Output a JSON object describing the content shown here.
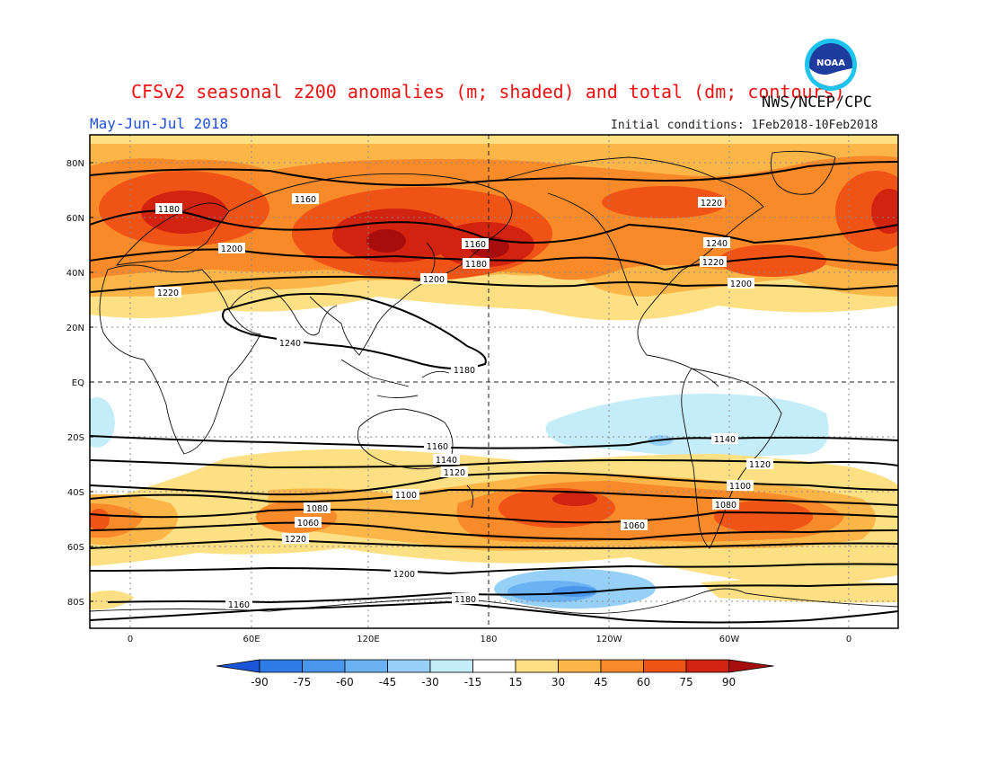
{
  "header": {
    "title": "CFSv2 seasonal z200 anomalies (m; shaded) and total (dm; contours)",
    "organization": "NWS/NCEP/CPC",
    "period": "May-Jun-Jul 2018",
    "initial_conditions": "Initial conditions: 1Feb2018-10Feb2018",
    "logo_text": "NOAA"
  },
  "axes": {
    "lat_labels": [
      "80N",
      "60N",
      "40N",
      "20N",
      "EQ",
      "20S",
      "40S",
      "60S",
      "80S"
    ],
    "lon_labels": [
      "0",
      "60E",
      "120E",
      "180",
      "120W",
      "60W",
      "0"
    ]
  },
  "contour_labels": [
    "1160",
    "1180",
    "1200",
    "1220",
    "1240",
    "1160",
    "1180",
    "1200",
    "1220",
    "1240",
    "1220",
    "1200",
    "1180",
    "1160",
    "1140",
    "1120",
    "1100",
    "1080",
    "1060",
    "1220",
    "1200",
    "1180",
    "1160",
    "1140",
    "1120",
    "1100",
    "1080",
    "1060"
  ],
  "colorbar": {
    "labels": [
      "-90",
      "-75",
      "-60",
      "-45",
      "-30",
      "-15",
      "15",
      "30",
      "45",
      "60",
      "75",
      "90"
    ],
    "colors": [
      "#1a57d8",
      "#2f7be6",
      "#4a96ec",
      "#6bb2f2",
      "#97d0f7",
      "#c4edf9",
      "#ffffff",
      "#fde083",
      "#fcb648",
      "#f88a2a",
      "#f05316",
      "#d22210",
      "#a80d0d"
    ]
  }
}
